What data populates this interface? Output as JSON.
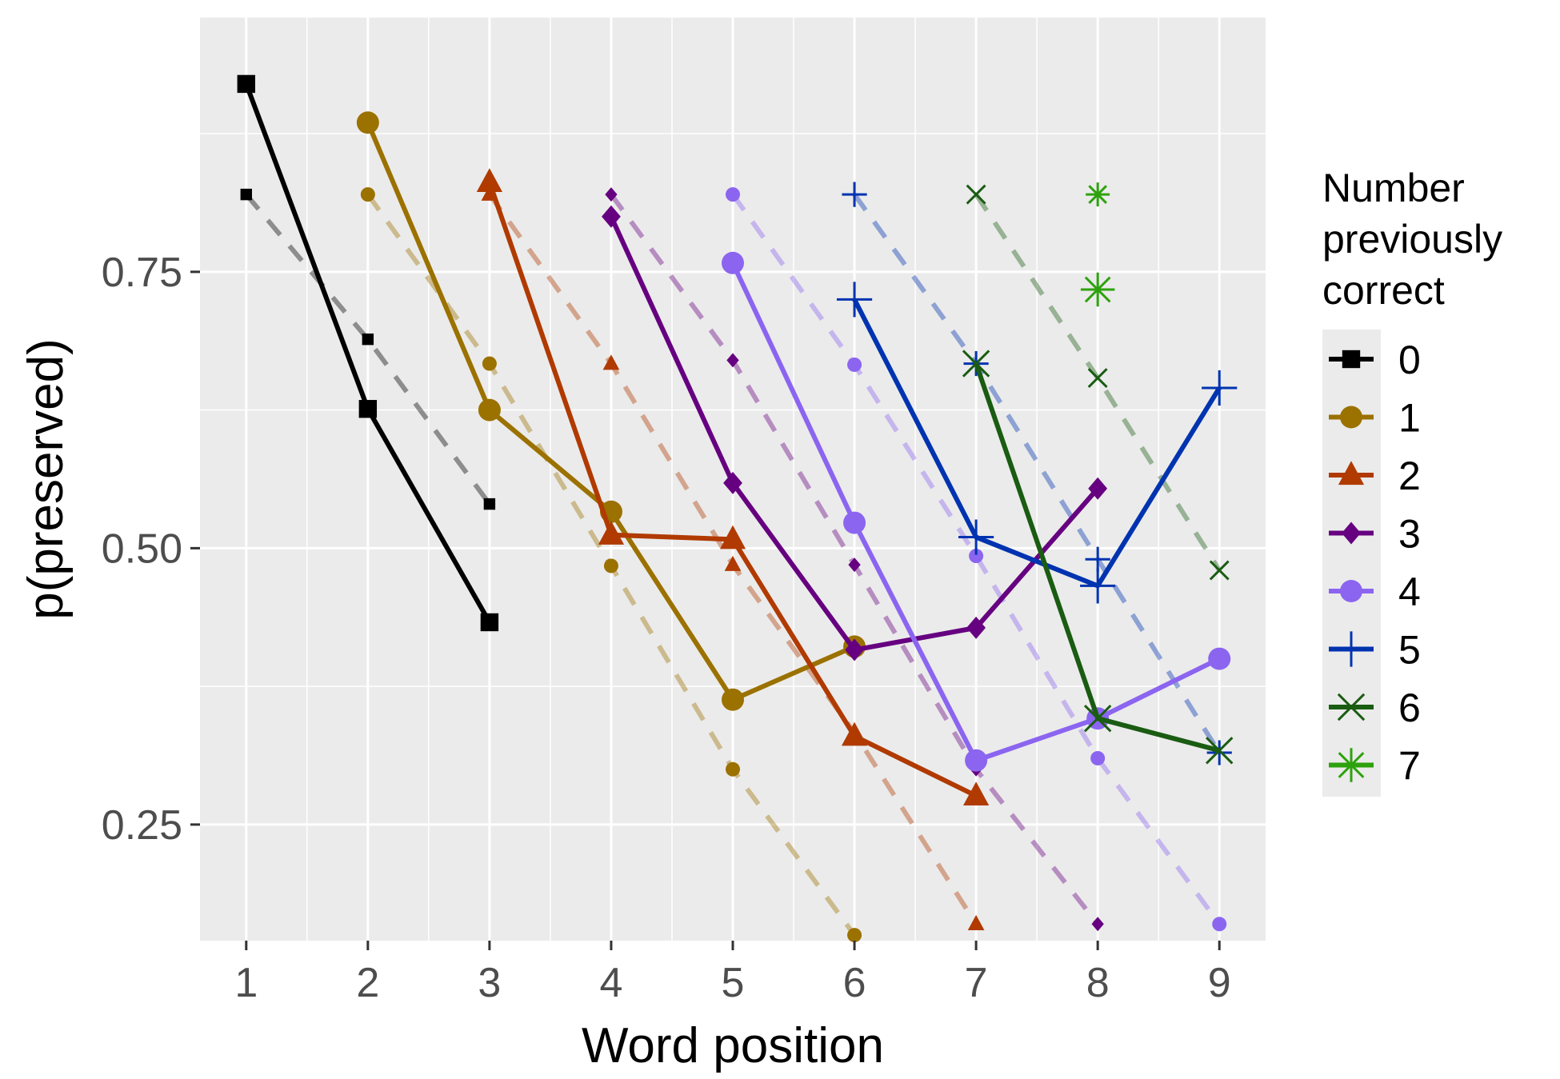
{
  "chart_data": {
    "type": "line",
    "xlabel": "Word position",
    "ylabel": "p(preserved)",
    "x_ticks": [
      1,
      2,
      3,
      4,
      5,
      6,
      7,
      8,
      9
    ],
    "y_ticks": [
      0.25,
      0.5,
      0.75
    ],
    "y_tick_labels": [
      "0.25",
      "0.50",
      "0.75"
    ],
    "xlim": [
      0.62,
      9.38
    ],
    "ylim": [
      0.145,
      0.98
    ],
    "grid": true,
    "background": "#ebebeb",
    "legend": {
      "title_lines": [
        "Number",
        "previously",
        "correct"
      ],
      "position": "right"
    },
    "series": [
      {
        "name": "0",
        "color": "#000000",
        "shape": "square",
        "solid": {
          "x": [
            1,
            2,
            3
          ],
          "y": [
            0.92,
            0.626,
            0.433
          ]
        },
        "dashed": {
          "x": [
            1,
            2,
            3
          ],
          "y": [
            0.82,
            0.689,
            0.54
          ]
        }
      },
      {
        "name": "1",
        "color": "#9b7100",
        "shape": "circle",
        "solid": {
          "x": [
            2,
            3,
            4,
            5,
            6
          ],
          "y": [
            0.885,
            0.625,
            0.533,
            0.363,
            0.411
          ]
        },
        "dashed": {
          "x": [
            2,
            3,
            4,
            5,
            6
          ],
          "y": [
            0.82,
            0.667,
            0.484,
            0.3,
            0.15
          ]
        }
      },
      {
        "name": "2",
        "color": "#b03a00",
        "shape": "triangle",
        "solid": {
          "x": [
            3,
            4,
            5,
            6,
            7
          ],
          "y": [
            0.831,
            0.512,
            0.508,
            0.33,
            0.276
          ]
        },
        "dashed": {
          "x": [
            3,
            4,
            5,
            6,
            7
          ],
          "y": [
            0.82,
            0.667,
            0.485,
            0.333,
            0.16
          ]
        }
      },
      {
        "name": "3",
        "color": "#660080",
        "shape": "diamond",
        "solid": {
          "x": [
            4,
            5,
            6,
            7,
            8
          ],
          "y": [
            0.8,
            0.559,
            0.408,
            0.428,
            0.554
          ]
        },
        "dashed": {
          "x": [
            4,
            5,
            6,
            7,
            8
          ],
          "y": [
            0.82,
            0.67,
            0.485,
            0.3,
            0.16
          ]
        }
      },
      {
        "name": "4",
        "color": "#8b65f0",
        "shape": "circle",
        "solid": {
          "x": [
            5,
            6,
            7,
            8,
            9
          ],
          "y": [
            0.758,
            0.523,
            0.308,
            0.346,
            0.4
          ]
        },
        "dashed": {
          "x": [
            5,
            6,
            7,
            8,
            9
          ],
          "y": [
            0.82,
            0.666,
            0.493,
            0.31,
            0.16
          ]
        }
      },
      {
        "name": "5",
        "color": "#0033b0",
        "shape": "plus",
        "solid": {
          "x": [
            6,
            7,
            8,
            9
          ],
          "y": [
            0.725,
            0.51,
            0.466,
            0.645
          ]
        },
        "dashed": {
          "x": [
            6,
            7,
            8,
            9
          ],
          "y": [
            0.82,
            0.667,
            0.49,
            0.315
          ]
        }
      },
      {
        "name": "6",
        "color": "#1a5c12",
        "shape": "cross",
        "solid": {
          "x": [
            7,
            8,
            9
          ],
          "y": [
            0.667,
            0.346,
            0.317
          ]
        },
        "dashed": {
          "x": [
            7,
            8,
            9
          ],
          "y": [
            0.82,
            0.654,
            0.48
          ]
        }
      },
      {
        "name": "7",
        "color": "#2ea20e",
        "shape": "asterisk",
        "solid": {
          "x": [
            8
          ],
          "y": [
            0.734
          ]
        },
        "dashed": {
          "x": [
            8
          ],
          "y": [
            0.82
          ]
        }
      }
    ]
  }
}
